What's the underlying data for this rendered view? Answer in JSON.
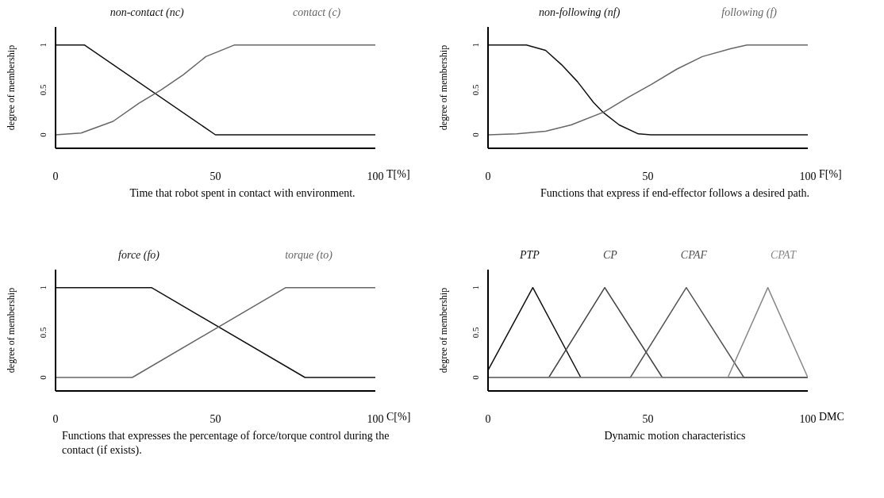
{
  "chart_data": [
    {
      "type": "line",
      "ylabel": "degree of membership",
      "xlabel": "T[%]",
      "xlim": [
        0,
        100
      ],
      "xticks": [
        0,
        50,
        100
      ],
      "ylim": [
        -0.15,
        1.2
      ],
      "yticks": [
        0,
        0.5,
        1
      ],
      "grid": false,
      "legend": "top",
      "marker": "none",
      "line_style": "solid",
      "annotations": [
        "Time that robot spent in contact with environment."
      ],
      "series": [
        {
          "name": "non-contact (nc)",
          "color": "#111111",
          "x": [
            0,
            9,
            50,
            100
          ],
          "values": [
            1,
            1,
            0,
            0
          ]
        },
        {
          "name": "contact (c)",
          "color": "#666666",
          "x": [
            0,
            8,
            18,
            26,
            33,
            40,
            47,
            56,
            100
          ],
          "values": [
            0,
            0.02,
            0.15,
            0.35,
            0.5,
            0.67,
            0.87,
            1,
            1
          ]
        }
      ]
    },
    {
      "type": "line",
      "ylabel": "degree of membership",
      "xlabel": "F[%]",
      "xlim": [
        0,
        100
      ],
      "xticks": [
        0,
        50,
        100
      ],
      "ylim": [
        -0.15,
        1.2
      ],
      "yticks": [
        0,
        0.5,
        1
      ],
      "grid": false,
      "legend": "top",
      "marker": "none",
      "line_style": "solid",
      "annotations": [
        "Functions that express if end-effector follows a desired path."
      ],
      "series": [
        {
          "name": "non-following (nf)",
          "color": "#111111",
          "x": [
            0,
            12,
            18,
            23,
            28,
            33,
            36,
            41,
            47,
            51,
            100
          ],
          "values": [
            1,
            1,
            0.94,
            0.78,
            0.59,
            0.36,
            0.25,
            0.11,
            0.01,
            0,
            0
          ]
        },
        {
          "name": "following (f)",
          "color": "#666666",
          "x": [
            0,
            9,
            18,
            26,
            36,
            44,
            51,
            59,
            67,
            76,
            81,
            100
          ],
          "values": [
            0,
            0.01,
            0.04,
            0.11,
            0.25,
            0.42,
            0.56,
            0.73,
            0.87,
            0.96,
            1,
            1
          ]
        }
      ]
    },
    {
      "type": "line",
      "ylabel": "degree of membership",
      "xlabel": "C[%]",
      "xlim": [
        0,
        100
      ],
      "xticks": [
        0,
        50,
        100
      ],
      "ylim": [
        -0.15,
        1.2
      ],
      "yticks": [
        0,
        0.5,
        1
      ],
      "grid": false,
      "legend": "top",
      "marker": "none",
      "line_style": "solid",
      "annotations": [
        "Functions that expresses the percentage of force/torque control during the contact (if exists)."
      ],
      "series": [
        {
          "name": "force (fo)",
          "color": "#111111",
          "x": [
            0,
            30,
            78,
            100
          ],
          "values": [
            1,
            1,
            0,
            0
          ]
        },
        {
          "name": "torque (to)",
          "color": "#666666",
          "x": [
            0,
            24,
            72,
            100
          ],
          "values": [
            0,
            0,
            1,
            1
          ]
        }
      ]
    },
    {
      "type": "line",
      "ylabel": "degree of membership",
      "xlabel": "DMC",
      "xlim": [
        0,
        100
      ],
      "xticks": [
        0,
        50,
        100
      ],
      "ylim": [
        -0.15,
        1.2
      ],
      "yticks": [
        0,
        0.5,
        1
      ],
      "grid": false,
      "legend": "top",
      "marker": "none",
      "line_style": "solid",
      "annotations": [
        "Dynamic motion characteristics"
      ],
      "series": [
        {
          "name": "PTP",
          "color": "#111111",
          "x": [
            0,
            14,
            29
          ],
          "values": [
            0.08,
            1,
            0
          ]
        },
        {
          "name": "CP",
          "color": "#444444",
          "x": [
            0,
            19,
            36.5,
            54.5,
            100
          ],
          "values": [
            0,
            0,
            1,
            0,
            0
          ]
        },
        {
          "name": "CPAF",
          "color": "#555555",
          "x": [
            0,
            44.5,
            62,
            80,
            100
          ],
          "values": [
            0,
            0,
            1,
            0,
            0
          ]
        },
        {
          "name": "CPAT",
          "color": "#888888",
          "x": [
            0,
            75,
            87.5,
            100
          ],
          "values": [
            0,
            0,
            1,
            0
          ]
        }
      ]
    }
  ]
}
